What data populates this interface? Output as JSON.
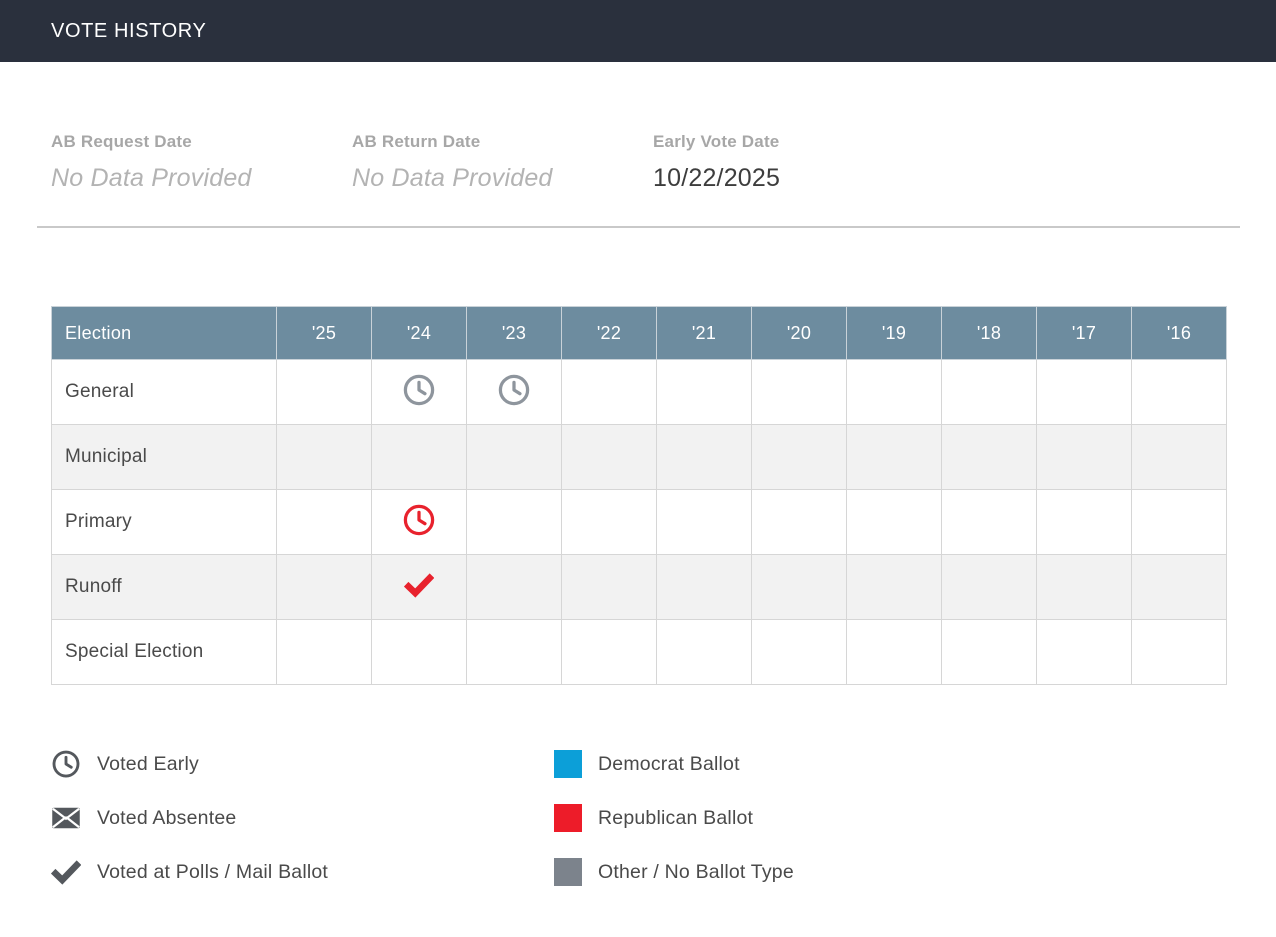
{
  "header": {
    "title": "VOTE HISTORY"
  },
  "summary": {
    "fields": [
      {
        "label": "AB Request Date",
        "value": "No Data Provided",
        "placeholder": true
      },
      {
        "label": "AB Return Date",
        "value": "No Data Provided",
        "placeholder": true
      },
      {
        "label": "Early Vote Date",
        "value": "10/22/2025",
        "placeholder": false
      }
    ]
  },
  "table": {
    "columns": [
      "Election",
      "'25",
      "'24",
      "'23",
      "'22",
      "'21",
      "'20",
      "'19",
      "'18",
      "'17",
      "'16"
    ],
    "rows": [
      {
        "label": "General",
        "cells": [
          null,
          {
            "icon": "clock-icon",
            "color": "#8e959d"
          },
          {
            "icon": "clock-icon",
            "color": "#8e959d"
          },
          null,
          null,
          null,
          null,
          null,
          null,
          null
        ]
      },
      {
        "label": "Municipal",
        "cells": [
          null,
          null,
          null,
          null,
          null,
          null,
          null,
          null,
          null,
          null
        ]
      },
      {
        "label": "Primary",
        "cells": [
          null,
          {
            "icon": "clock-icon",
            "color": "#e8222d"
          },
          null,
          null,
          null,
          null,
          null,
          null,
          null,
          null
        ]
      },
      {
        "label": "Runoff",
        "cells": [
          null,
          {
            "icon": "check-icon",
            "color": "#e8222d"
          },
          null,
          null,
          null,
          null,
          null,
          null,
          null,
          null
        ]
      },
      {
        "label": "Special Election",
        "cells": [
          null,
          null,
          null,
          null,
          null,
          null,
          null,
          null,
          null,
          null
        ]
      }
    ]
  },
  "legend": {
    "vote_methods": [
      {
        "icon": "clock-icon",
        "color": "#54585d",
        "label": "Voted Early"
      },
      {
        "icon": "envelope-icon",
        "color": "#54585d",
        "label": "Voted Absentee"
      },
      {
        "icon": "check-icon",
        "color": "#54585d",
        "label": "Voted at Polls / Mail Ballot"
      }
    ],
    "ballot_types": [
      {
        "swatch": "#0c9fd8",
        "label": "Democrat Ballot"
      },
      {
        "swatch": "#ed1c29",
        "label": "Republican Ballot"
      },
      {
        "swatch": "#7c838c",
        "label": "Other / No Ballot Type"
      }
    ]
  },
  "theme": {
    "top_bar": "#2a303d",
    "table_header": "#6d8c9f",
    "striped_row": "#f2f2f2",
    "democrat_blue": "#0c9fd8",
    "republican_red": "#ed1c29",
    "other_gray": "#7c838c"
  }
}
